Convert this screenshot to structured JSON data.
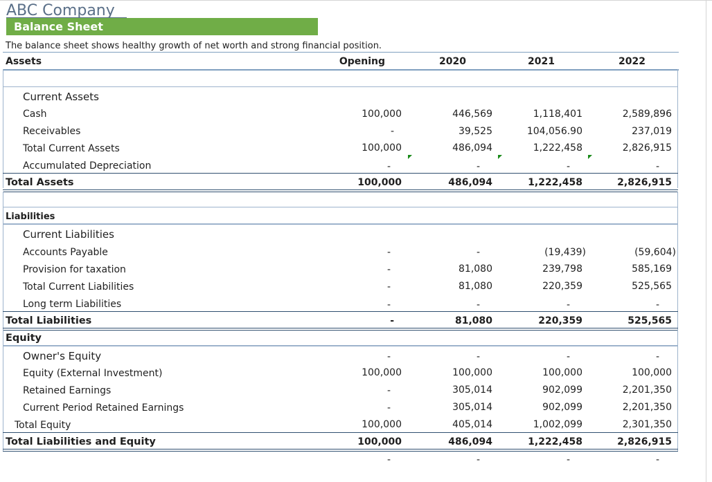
{
  "company": "ABC Company",
  "sheet_title": "Balance Sheet",
  "description": "The balance sheet shows healthy growth of net worth and strong financial position.",
  "header": {
    "label": "Assets",
    "cols": [
      "Opening",
      "2020",
      "2021",
      "2022"
    ]
  },
  "assets": {
    "group_label": "Current Assets",
    "rows": [
      {
        "label": "Cash",
        "values": [
          "100,000",
          "446,569",
          "1,118,401",
          "2,589,896"
        ]
      },
      {
        "label": "Receivables",
        "values": [
          "-",
          "39,525",
          "104,056.90",
          "237,019"
        ]
      },
      {
        "label": "Total Current Assets",
        "values": [
          "100,000",
          "486,094",
          "1,222,458",
          "2,826,915"
        ]
      },
      {
        "label": "Accumulated Depreciation",
        "values": [
          "-",
          "-",
          "-",
          "-"
        ]
      }
    ],
    "total": {
      "label": "Total Assets",
      "values": [
        "100,000",
        "486,094",
        "1,222,458",
        "2,826,915"
      ]
    }
  },
  "liabilities": {
    "section_label": "Liabilities",
    "group_label": "Current Liabilities",
    "rows": [
      {
        "label": "Accounts Payable",
        "values": [
          "-",
          "-",
          "(19,439)",
          "(59,604)"
        ]
      },
      {
        "label": "Provision for taxation",
        "values": [
          "-",
          "81,080",
          "239,798",
          "585,169"
        ]
      },
      {
        "label": "Total Current Liabilities",
        "values": [
          "-",
          "81,080",
          "220,359",
          "525,565"
        ]
      },
      {
        "label": "Long term Liabilities",
        "values": [
          "-",
          "-",
          "-",
          "-"
        ]
      }
    ],
    "total": {
      "label": "Total Liabilities",
      "values": [
        "-",
        "81,080",
        "220,359",
        "525,565"
      ]
    }
  },
  "equity": {
    "section_label": "Equity",
    "group": {
      "label": "Owner's Equity",
      "values": [
        "-",
        "-",
        "-",
        "-"
      ]
    },
    "rows": [
      {
        "label": "Equity  (External Investment)",
        "values": [
          "100,000",
          "100,000",
          "100,000",
          "100,000"
        ]
      },
      {
        "label": "Retained Earnings",
        "values": [
          "-",
          "305,014",
          "902,099",
          "2,201,350"
        ]
      },
      {
        "label": "Current Period Retained Earnings",
        "values": [
          "-",
          "305,014",
          "902,099",
          "2,201,350"
        ]
      }
    ],
    "total_equity": {
      "label": "Total Equity",
      "values": [
        "100,000",
        "405,014",
        "1,002,099",
        "2,301,350"
      ]
    },
    "grand_total": {
      "label": "Total Liabilities and Equity",
      "values": [
        "100,000",
        "486,094",
        "1,222,458",
        "2,826,915"
      ]
    }
  },
  "check_row": {
    "values": [
      "-",
      "-",
      "-",
      "-"
    ]
  },
  "colors": {
    "banner": "#70ad47",
    "title": "#5a6f88",
    "rule": "#9db3cc",
    "flag": "#1a8a1a"
  }
}
